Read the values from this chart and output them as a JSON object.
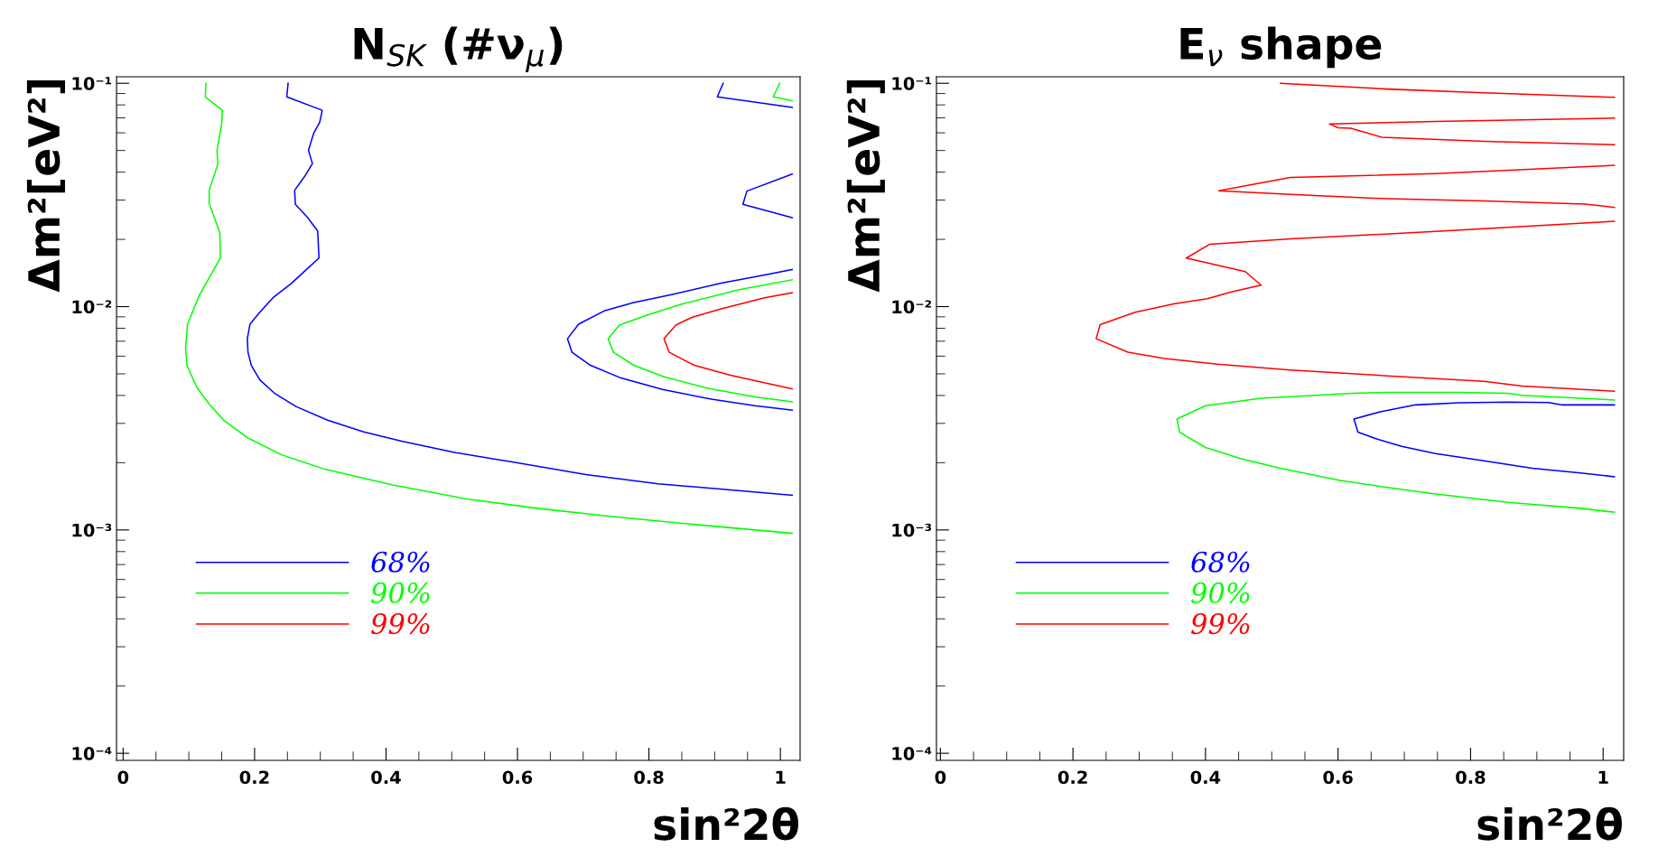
{
  "chart_data": [
    {
      "type": "line",
      "title": "N$_{SK}$ (#ν$_{μ}$)",
      "xlabel": "sin²2θ",
      "ylabel": "Δm²[eV²]",
      "log": "y",
      "legend": "bottom left",
      "xlim": [
        -0.01,
        1.03
      ],
      "ylim": [
        9.3e-05,
        0.107
      ],
      "xticks": [
        0,
        0.2,
        0.4,
        0.6,
        0.8,
        1
      ],
      "yticks": [
        {
          "value": 0.1,
          "label": "10⁻¹"
        },
        {
          "value": 0.01,
          "label": "10⁻²"
        },
        {
          "value": 0.001,
          "label": "10⁻³"
        },
        {
          "value": 0.0001,
          "label": "10⁻⁴"
        }
      ],
      "series": [
        {
          "name": "68%",
          "color": "#0000ff",
          "x": [
            0.251,
            0.249,
            0.303,
            0.299,
            0.29,
            0.282,
            0.288,
            0.276,
            0.261,
            0.262,
            0.28,
            0.296,
            0.298,
            0.276,
            0.256,
            0.228,
            0.208,
            0.193,
            0.189,
            0.19,
            0.195,
            0.208,
            0.23,
            0.263,
            0.311,
            0.366,
            0.425,
            0.506,
            0.594,
            0.704,
            0.814,
            0.924,
            1.018
          ],
          "values": [
            0.1,
            0.0869,
            0.0757,
            0.0667,
            0.0598,
            0.0502,
            0.0437,
            0.0382,
            0.0332,
            0.0287,
            0.0252,
            0.0218,
            0.0165,
            0.0144,
            0.0127,
            0.01096,
            0.00944,
            0.00834,
            0.00718,
            0.00624,
            0.00546,
            0.0047,
            0.0041,
            0.00357,
            0.0031,
            0.00275,
            0.00249,
            0.00222,
            0.00201,
            0.00177,
            0.00161,
            0.00151,
            0.00143
          ]
        },
        {
          "name": "90%",
          "color": "#00ff00",
          "x": [
            0.126,
            0.125,
            0.151,
            0.15,
            0.143,
            0.144,
            0.131,
            0.131,
            0.147,
            0.148,
            0.116,
            0.098,
            0.095,
            0.097,
            0.112,
            0.131,
            0.153,
            0.19,
            0.241,
            0.307,
            0.41,
            0.52,
            0.63,
            0.741,
            0.851,
            1.018
          ],
          "values": [
            0.1,
            0.0869,
            0.0757,
            0.0661,
            0.0502,
            0.0433,
            0.0332,
            0.029,
            0.0215,
            0.0165,
            0.01125,
            0.00834,
            0.0065,
            0.00546,
            0.00436,
            0.00366,
            0.0031,
            0.00258,
            0.00217,
            0.00187,
            0.00159,
            0.00138,
            0.00125,
            0.00115,
            0.00107,
            0.000966
          ]
        },
        {
          "name": "99%",
          "color": "#ff0000",
          "x": [
            1.018,
            0.976,
            0.91,
            0.866,
            0.841,
            0.823,
            0.831,
            0.869,
            0.924,
            0.983,
            1.018
          ],
          "values": [
            0.01153,
            0.01096,
            0.00977,
            0.00897,
            0.00826,
            0.00718,
            0.00624,
            0.00546,
            0.00493,
            0.00451,
            0.00428
          ]
        },
        {
          "color": "#0000ff",
          "x": [
            0.913,
            0.904,
            1.018
          ],
          "values": [
            0.1,
            0.0869,
            0.078
          ]
        },
        {
          "color": "#00ff00",
          "x": [
            0.999,
            0.989,
            1.018
          ],
          "values": [
            0.1,
            0.0869,
            0.0835
          ]
        },
        {
          "color": "#0000ff",
          "x": [
            1.018,
            0.949,
            0.943,
            1.018
          ],
          "values": [
            0.0392,
            0.0329,
            0.0287,
            0.025
          ]
        },
        {
          "color": "#0000ff",
          "x": [
            1.018,
            0.976,
            0.91,
            0.836,
            0.777,
            0.733,
            0.693,
            0.676,
            0.683,
            0.711,
            0.755,
            0.822,
            0.895,
            0.961,
            1.018
          ],
          "values": [
            0.01466,
            0.01387,
            0.01274,
            0.01135,
            0.01042,
            0.0096,
            0.00834,
            0.00718,
            0.00624,
            0.00546,
            0.00482,
            0.00425,
            0.00385,
            0.0036,
            0.00344
          ]
        },
        {
          "color": "#00ff00",
          "x": [
            1.018,
            0.939,
            0.851,
            0.799,
            0.755,
            0.738,
            0.746,
            0.777,
            0.822,
            0.888,
            0.961,
            1.018
          ],
          "values": [
            0.01318,
            0.01194,
            0.01028,
            0.0092,
            0.00826,
            0.00718,
            0.00624,
            0.00546,
            0.00486,
            0.00432,
            0.00394,
            0.00375
          ]
        }
      ]
    },
    {
      "type": "line",
      "title": "E$_{ν}$ shape",
      "xlabel": "sin²2θ",
      "ylabel": "Δm²[eV²]",
      "log": "y",
      "legend": "bottom left",
      "xlim": [
        -0.006,
        1.031
      ],
      "ylim": [
        9.3e-05,
        0.107
      ],
      "xticks": [
        0,
        0.2,
        0.4,
        0.6,
        0.8,
        1
      ],
      "yticks": [
        {
          "value": 0.1,
          "label": "10⁻¹"
        },
        {
          "value": 0.01,
          "label": "10⁻²"
        },
        {
          "value": 0.001,
          "label": "10⁻³"
        },
        {
          "value": 0.0001,
          "label": "10⁻⁴"
        }
      ],
      "series": [
        {
          "name": "68%",
          "color": "#0000ff",
          "x": [
            1.017,
            0.937,
            0.918,
            0.856,
            0.783,
            0.717,
            0.662,
            0.624,
            0.63,
            0.659,
            0.696,
            0.747,
            0.82,
            0.893,
            0.966,
            1.017
          ],
          "values": [
            0.00363,
            0.00363,
            0.00372,
            0.00374,
            0.00371,
            0.00363,
            0.00337,
            0.00314,
            0.00274,
            0.00255,
            0.00237,
            0.0022,
            0.00204,
            0.00189,
            0.0018,
            0.00173
          ]
        },
        {
          "name": "90%",
          "color": "#00ff00",
          "x": [
            1.017,
            0.878,
            0.856,
            0.783,
            0.674,
            0.622,
            0.484,
            0.4,
            0.357,
            0.361,
            0.4,
            0.455,
            0.513,
            0.601,
            0.674,
            0.747,
            0.856,
            0.966,
            1.017
          ],
          "values": [
            0.00382,
            0.00401,
            0.00409,
            0.00413,
            0.00413,
            0.00409,
            0.00389,
            0.0036,
            0.00314,
            0.00274,
            0.00234,
            0.00208,
            0.00189,
            0.00167,
            0.00155,
            0.00145,
            0.00133,
            0.00125,
            0.0012
          ]
        },
        {
          "name": "99%",
          "color": "#ff0000",
          "x": [
            1.017,
            0.747,
            0.528,
            0.406,
            0.371,
            0.46,
            0.484,
            0.439,
            0.403,
            0.352,
            0.294,
            0.241,
            0.235,
            0.283,
            0.338,
            0.418,
            0.528,
            0.674,
            0.82,
            0.878,
            1.017
          ],
          "values": [
            0.0241,
            0.0217,
            0.0201,
            0.019,
            0.0165,
            0.01435,
            0.01248,
            0.01164,
            0.01086,
            0.01028,
            0.00944,
            0.0083,
            0.00718,
            0.00625,
            0.00586,
            0.00552,
            0.0052,
            0.0049,
            0.00463,
            0.00441,
            0.00418
          ]
        },
        {
          "color": "#ff0000",
          "x": [
            0.513,
            0.674,
            0.82,
            1.017
          ],
          "values": [
            0.1,
            0.0942,
            0.0906,
            0.0865
          ]
        },
        {
          "color": "#ff0000",
          "x": [
            1.017,
            0.747,
            0.587,
            0.6,
            0.619,
            0.666,
            0.82,
            1.017
          ],
          "values": [
            0.0698,
            0.0675,
            0.0658,
            0.0632,
            0.0629,
            0.0573,
            0.055,
            0.0531
          ]
        },
        {
          "color": "#ff0000",
          "x": [
            1.017,
            0.747,
            0.528,
            0.42,
            0.528,
            0.674,
            0.82,
            0.973,
            1.017
          ],
          "values": [
            0.0429,
            0.0394,
            0.0379,
            0.033,
            0.0318,
            0.0304,
            0.0297,
            0.0288,
            0.0278
          ]
        }
      ]
    }
  ]
}
